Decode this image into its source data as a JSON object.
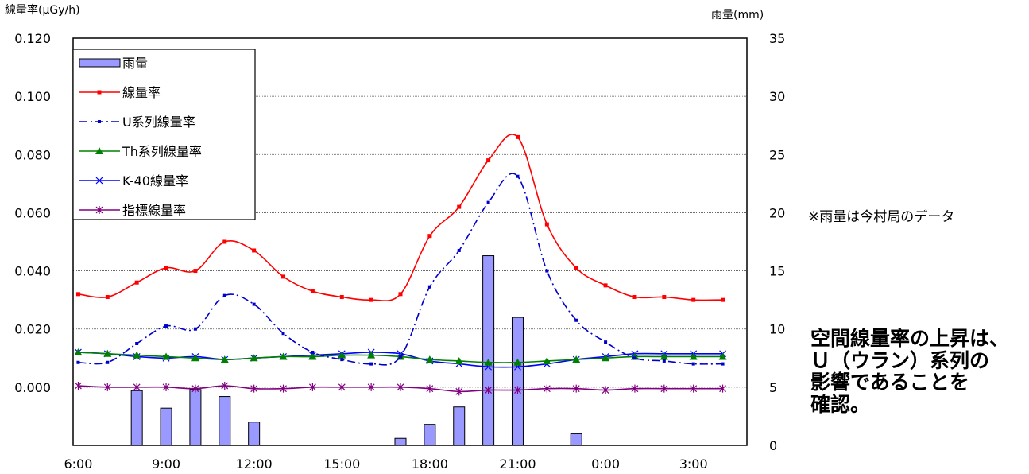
{
  "chart_data": {
    "type": "line",
    "left_axis_label": "線量率(μGy/h)",
    "right_axis_label": "雨量(mm)",
    "ylim_left": [
      -0.02,
      0.12
    ],
    "ylim_right": [
      0,
      35
    ],
    "left_ticks": [
      "0.120",
      "0.100",
      "0.080",
      "0.060",
      "0.040",
      "0.020",
      "0.000"
    ],
    "left_tick_values": [
      0.12,
      0.1,
      0.08,
      0.06,
      0.04,
      0.02,
      0.0
    ],
    "right_ticks": [
      "35",
      "30",
      "25",
      "20",
      "15",
      "10",
      "5",
      "0"
    ],
    "right_tick_values": [
      35,
      30,
      25,
      20,
      15,
      10,
      5,
      0
    ],
    "gridlines": [
      0.12,
      0.1,
      0.08,
      0.06,
      0.04,
      0.02,
      0.0
    ],
    "x": [
      "6:00",
      "7:00",
      "8:00",
      "9:00",
      "10:00",
      "11:00",
      "12:00",
      "13:00",
      "14:00",
      "15:00",
      "16:00",
      "17:00",
      "18:00",
      "19:00",
      "20:00",
      "21:00",
      "22:00",
      "23:00",
      "0:00",
      "1:00",
      "2:00",
      "3:00",
      "4:00"
    ],
    "x_tick_labels": [
      "6:00",
      "9:00",
      "12:00",
      "15:00",
      "18:00",
      "21:00",
      "0:00",
      "3:00"
    ],
    "x_tick_index": [
      0,
      3,
      6,
      9,
      12,
      15,
      18,
      21
    ],
    "bars": {
      "name": "雨量",
      "axis": "right",
      "color": "#9999ff",
      "values": [
        0,
        0,
        4.7,
        3.2,
        4.8,
        4.2,
        2.0,
        0,
        0,
        0,
        0,
        0.6,
        1.8,
        3.3,
        16.3,
        11.0,
        0,
        1.0,
        0,
        0,
        0,
        0,
        0
      ]
    },
    "series": [
      {
        "name": "線量率",
        "color": "#ff0000",
        "style": "solid",
        "marker": "square",
        "values": [
          0.032,
          0.031,
          0.036,
          0.041,
          0.04,
          0.05,
          0.047,
          0.038,
          0.033,
          0.031,
          0.03,
          0.032,
          0.052,
          0.062,
          0.078,
          0.086,
          0.056,
          0.041,
          0.035,
          0.031,
          0.031,
          0.03,
          0.03
        ]
      },
      {
        "name": "U系列線量率",
        "color": "#0000cc",
        "style": "dashdot",
        "marker": "smallsquare",
        "values": [
          0.0085,
          0.0085,
          0.015,
          0.021,
          0.02,
          0.0315,
          0.0285,
          0.0185,
          0.012,
          0.0095,
          0.008,
          0.0105,
          0.0345,
          0.047,
          0.0635,
          0.0725,
          0.04,
          0.023,
          0.0155,
          0.01,
          0.009,
          0.008,
          0.008
        ]
      },
      {
        "name": "Th系列線量率",
        "color": "#008000",
        "style": "solid",
        "marker": "triangle",
        "values": [
          0.012,
          0.0115,
          0.011,
          0.0105,
          0.01,
          0.0095,
          0.01,
          0.0105,
          0.0105,
          0.011,
          0.011,
          0.0105,
          0.0095,
          0.009,
          0.0085,
          0.0085,
          0.009,
          0.0095,
          0.01,
          0.0105,
          0.0105,
          0.0105,
          0.0105
        ]
      },
      {
        "name": "K-40線量率",
        "color": "#0000ff",
        "style": "solid",
        "marker": "x",
        "values": [
          0.012,
          0.0115,
          0.0105,
          0.01,
          0.0105,
          0.0095,
          0.01,
          0.0105,
          0.011,
          0.0115,
          0.012,
          0.0115,
          0.009,
          0.008,
          0.007,
          0.007,
          0.008,
          0.0095,
          0.0105,
          0.0115,
          0.0115,
          0.0115,
          0.0115
        ]
      },
      {
        "name": "指標線量率",
        "color": "#800080",
        "style": "solid",
        "marker": "star",
        "values": [
          0.0005,
          0.0,
          0.0,
          0.0,
          -0.0005,
          0.0005,
          -0.0005,
          -0.0005,
          0.0,
          0.0,
          0.0,
          0.0,
          -0.0005,
          -0.0015,
          -0.001,
          -0.001,
          -0.0005,
          -0.0005,
          -0.001,
          -0.0005,
          -0.0005,
          -0.0005,
          -0.0005
        ]
      }
    ],
    "legend_placement": "top-left"
  },
  "annotations": {
    "note": "※雨量は今村局のデータ",
    "summary": [
      "空間線量率の上昇は、",
      "Ｕ（ウラン）系列の",
      "影響であることを",
      "確認。"
    ]
  }
}
